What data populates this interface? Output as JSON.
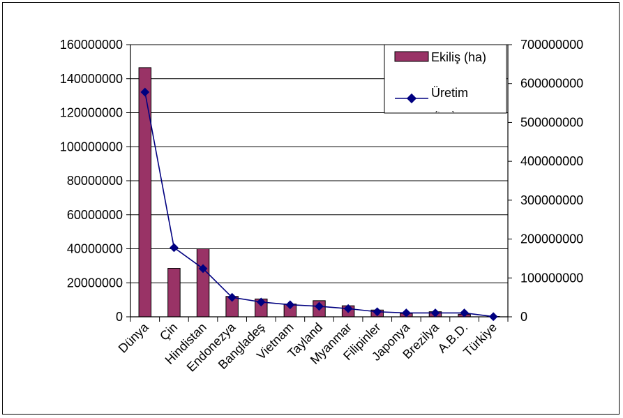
{
  "chart_data": {
    "type": "bar",
    "categories": [
      "Dünya",
      "Çin",
      "Hindistan",
      "Endonezya",
      "Bangladeş",
      "Vietnam",
      "Tayland",
      "Myanmar",
      "Filipinler",
      "Japonya",
      "Brezilya",
      "A.B.D.",
      "Türkiye"
    ],
    "series": [
      {
        "name": "Ekiliş (ha)",
        "type": "bar",
        "axis": "left",
        "color": "#993366",
        "values": [
          146500000,
          28500000,
          40000000,
          12000000,
          10500000,
          7500000,
          9500000,
          6500000,
          4000000,
          2000000,
          3000000,
          1500000,
          200000
        ]
      },
      {
        "name": "Üretim (ton)",
        "type": "line",
        "axis": "right",
        "color": "#000080",
        "values": [
          578000000,
          178000000,
          124000000,
          50000000,
          38000000,
          31000000,
          27000000,
          21000000,
          13000000,
          10000000,
          10000000,
          10000000,
          500000
        ]
      }
    ],
    "y_left": {
      "min": 0,
      "max": 160000000,
      "step": 20000000,
      "ticks": [
        "0",
        "20000000",
        "40000000",
        "60000000",
        "80000000",
        "100000000",
        "120000000",
        "140000000",
        "160000000"
      ]
    },
    "y_right": {
      "min": 0,
      "max": 700000000,
      "step": 100000000,
      "ticks": [
        "0",
        "100000000",
        "200000000",
        "300000000",
        "400000000",
        "500000000",
        "600000000",
        "700000000"
      ]
    },
    "grid": true,
    "legend": {
      "position": "top-right",
      "items": [
        "Ekiliş (ha)",
        "Üretim (ton)"
      ]
    }
  }
}
